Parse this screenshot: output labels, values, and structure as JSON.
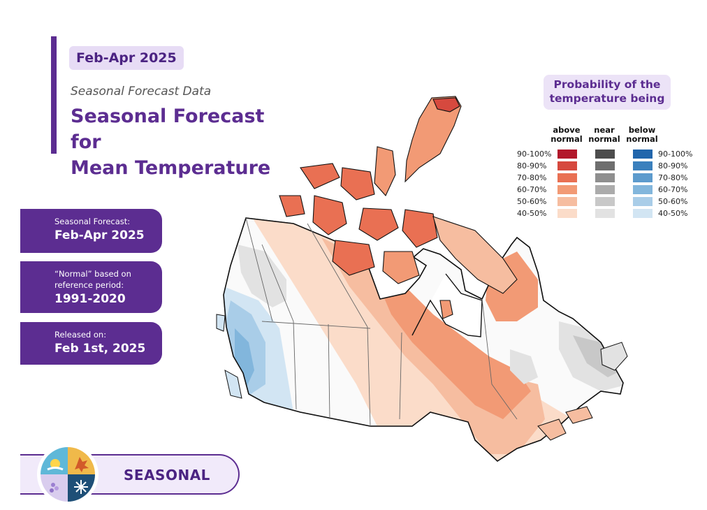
{
  "header": {
    "date_pill": "Feb-Apr 2025",
    "subtitle": "Seasonal Forecast Data",
    "title_line1": "Seasonal Forecast for",
    "title_line2": "Mean Temperature"
  },
  "cards": [
    {
      "label": "Seasonal Forecast:",
      "value": "Feb-Apr 2025"
    },
    {
      "label_line1": "“Normal” based on",
      "label_line2": "reference period:",
      "value": "1991-2020"
    },
    {
      "label": "Released on:",
      "value": "Feb 1st, 2025"
    }
  ],
  "season": {
    "label": "SEASONAL"
  },
  "legend": {
    "title_line1": "Probability of the",
    "title_line2": "temperature being",
    "columns": [
      {
        "line1": "above",
        "line2": "normal"
      },
      {
        "line1": "near",
        "line2": "normal"
      },
      {
        "line1": "below",
        "line2": "normal"
      }
    ],
    "ranges": [
      "90-100%",
      "80-90%",
      "70-80%",
      "60-70%",
      "50-60%",
      "40-50%"
    ],
    "colors": {
      "above": [
        "#b2182b",
        "#d6493e",
        "#e97053",
        "#f29a75",
        "#f6bda0",
        "#fbdcc9"
      ],
      "near": [
        "#4d4d4d",
        "#6e6e6e",
        "#8f8f8f",
        "#ababab",
        "#c8c8c8",
        "#e2e2e2"
      ],
      "below": [
        "#2166ac",
        "#3b80bd",
        "#5d9bcd",
        "#82b6dc",
        "#a9cde8",
        "#d2e5f3"
      ]
    }
  },
  "colors": {
    "accent": "#5c2d91",
    "pill_bg": "#e7dcf5"
  }
}
